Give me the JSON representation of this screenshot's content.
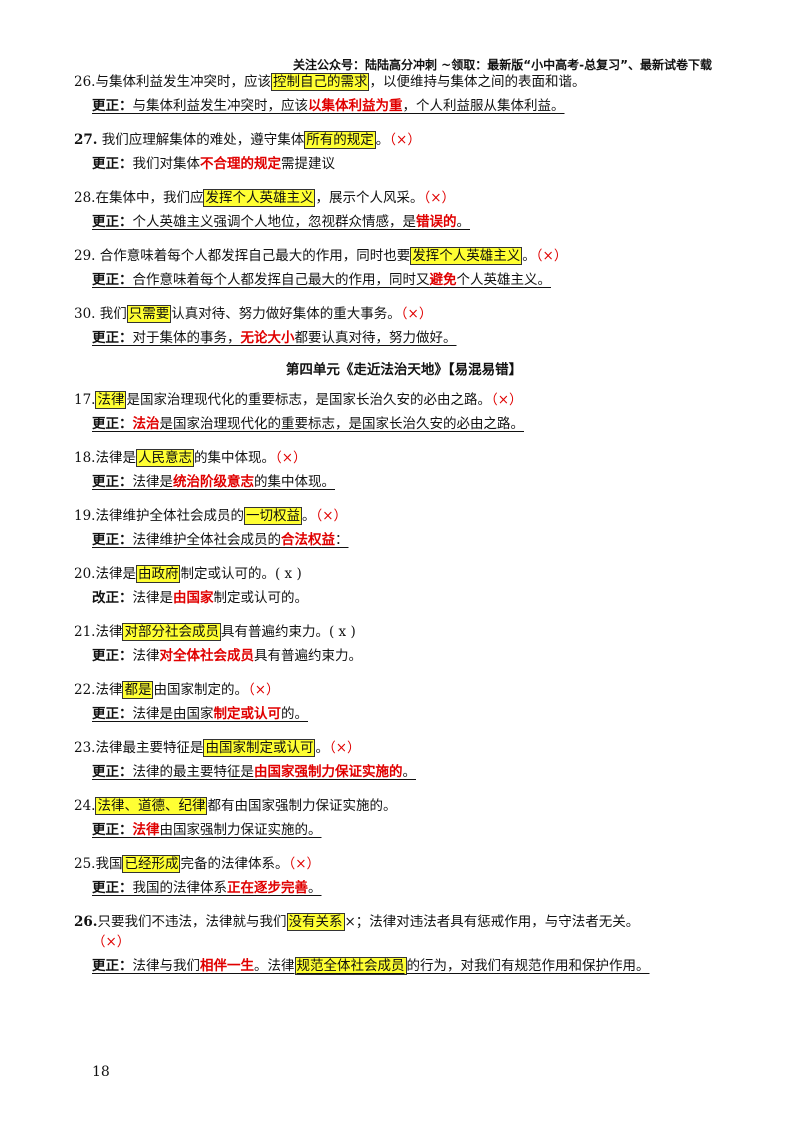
{
  "header": "关注公众号：陆陆高分冲刺  ~领取：最新版“小中高考-总复习”、最新试卷下载",
  "section_title": "第四单元《走近法治天地》【易混易错】",
  "page_number": "18",
  "items": [
    {
      "q": [
        "26.与集体利益发生冲突时，应该",
        "控制自己的需求",
        "，以便维持与集体之间的表面和谐。",
        ""
      ],
      "a": [
        "更正：",
        "与集体利益发生冲突时，应该",
        "以集体利益为重",
        "，个人利益服从集体利益。"
      ]
    },
    {
      "q": [
        "27.",
        " 我们应理解集体的难处，遵守集体",
        "所有的规定",
        "。",
        "（×）"
      ],
      "a": [
        "更正：",
        "我们对集体",
        "不合理的规定",
        "需提建议"
      ]
    },
    {
      "q": [
        "28.在集体中，我们应",
        "发挥个人英雄主义",
        "，展示个人风采。",
        "（×）"
      ],
      "a": [
        "更正：",
        "个人英雄主义强调个人地位，忽视群众情感，是",
        "错误的",
        "。"
      ]
    },
    {
      "q": [
        "29.  合作意味着每个人都发挥自己最大的作用，同时也要",
        "发挥个人英雄主义",
        "。",
        "（×）"
      ],
      "a": [
        "更正：",
        "合作意味着每个人都发挥自己最大的作用，同时又",
        "避免",
        "个人英雄主义。"
      ]
    },
    {
      "q": [
        "30.  我们",
        "只需要",
        "认真对待、努力做好集体的重大事务。",
        "（×）"
      ],
      "a": [
        "更正：",
        "对于集体的事务，",
        "无论大小",
        "都要认真对待，努力做好。"
      ]
    }
  ],
  "items2": [
    {
      "q": [
        "17.",
        "法律",
        "是国家治理现代化的重要标志，是国家长治久安的必由之路。",
        "（×）"
      ],
      "a": [
        "更正：",
        "",
        "法治",
        "是国家治理现代化的重要标志，是国家长治久安的必由之路。"
      ]
    },
    {
      "q": [
        "18.法律是",
        "人民意志",
        "的集中体现。",
        "（×）"
      ],
      "a": [
        "更正：",
        "法律是",
        "统治阶级意志",
        "的集中体现。"
      ]
    },
    {
      "q": [
        "19.法律维护全体社会成员的",
        "一切权益",
        "。",
        "（×）"
      ],
      "a": [
        "更正：",
        "法律维护全体社会成员的",
        "合法权益",
        "："
      ]
    },
    {
      "q": [
        "20.法律是",
        "由政府",
        "制定或认可的。",
        "( x  )"
      ],
      "a": [
        "改正：",
        "法律是",
        "由国家",
        "制定或认可的。"
      ]
    },
    {
      "q": [
        "21.法律",
        "对部分社会成员",
        "具有普遍约束力。",
        "(   x    )"
      ],
      "a": [
        "更正：",
        "法律",
        "对全体社会成员",
        "具有普遍约束力。"
      ]
    },
    {
      "q": [
        "22.法律",
        "都是",
        "由国家制定的。",
        "（×）"
      ],
      "a": [
        "更正：",
        "法律是由国家",
        "制定或认可",
        "的。"
      ]
    },
    {
      "q": [
        "23.法律最主要特征是",
        "由国家制定或认可",
        "。",
        "（×）"
      ],
      "a": [
        "更正：",
        "法律的最主要特征是",
        "由国家强制力保证实施的",
        "。"
      ]
    },
    {
      "q": [
        "24.",
        "法律、道德、纪律",
        "都有由国家强制力保证实施的。",
        ""
      ],
      "a": [
        "更正：",
        "",
        "法律",
        "由国家强制力保证实施的。"
      ]
    },
    {
      "q": [
        "25.我国",
        "已经形成",
        "完备的法律体系。",
        "（×）"
      ],
      "a": [
        "更正：",
        "我国的法律体系",
        "正在逐步完善",
        "。"
      ]
    }
  ],
  "item26": {
    "q1": "26.",
    "q2": "只要我们不违法，法律就与我们",
    "q3": "没有关系",
    "q4": "×；法律对违法者具有惩戒作用，与守法者无关。",
    "q5": "（×）",
    "a1": "更正：",
    "a2": "法律与我们",
    "a3": "相伴一生",
    "a4": "。法律",
    "a5": "规范全体社会成员",
    "a6": "的行为，对我们有规范作用和保护作用。"
  }
}
